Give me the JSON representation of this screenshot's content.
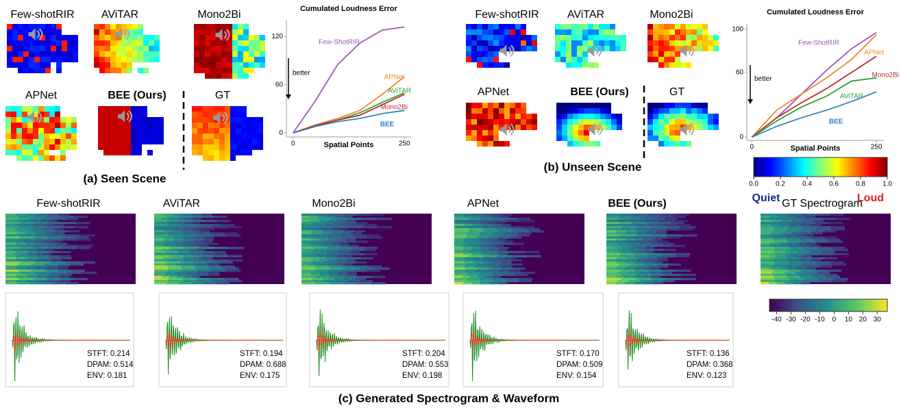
{
  "panels": {
    "seen": {
      "caption": "(a) Seen Scene",
      "methods": [
        "Few-shotRIR",
        "AViTAR",
        "Mono2Bi",
        "APNet",
        "BEE (Ours)",
        "GT"
      ]
    },
    "unseen": {
      "caption": "(b) Unseen Scene",
      "methods": [
        "Few-shotRIR",
        "AViTAR",
        "Mono2Bi",
        "APNet",
        "BEE (Ours)",
        "GT"
      ]
    }
  },
  "chart_data": [
    {
      "type": "line",
      "title": "Cumulated Loudness Error",
      "xlabel": "Spatial Points",
      "annotation": "better",
      "x": [
        0,
        50,
        100,
        150,
        200,
        250
      ],
      "xlim": [
        -15,
        265
      ],
      "ylim": [
        -5,
        140
      ],
      "xticks": [
        0,
        250
      ],
      "yticks": [
        0,
        60,
        120
      ],
      "series": [
        {
          "name": "Few-ShotRIR",
          "color": "#9b59b6",
          "values": [
            0,
            40,
            85,
            112,
            128,
            132
          ]
        },
        {
          "name": "APNet",
          "color": "#f0862a",
          "values": [
            0,
            10,
            18,
            28,
            48,
            70
          ]
        },
        {
          "name": "AViTAR",
          "color": "#2ca02c",
          "values": [
            0,
            9,
            16,
            25,
            38,
            50
          ]
        },
        {
          "name": "Mono2Bi",
          "color": "#c0282d",
          "values": [
            0,
            9,
            16,
            22,
            35,
            48
          ]
        },
        {
          "name": "BEE",
          "color": "#2e7fc0",
          "values": [
            0,
            8,
            14,
            18,
            24,
            28
          ]
        }
      ]
    },
    {
      "type": "line",
      "title": "Cumulated Loudness Error",
      "xlabel": "Spatial  Points",
      "annotation": "better",
      "x": [
        0,
        50,
        100,
        150,
        200,
        250
      ],
      "xlim": [
        -10,
        265
      ],
      "ylim": [
        -3,
        105
      ],
      "xticks": [
        0,
        250
      ],
      "yticks": [
        0,
        60,
        100
      ],
      "series": [
        {
          "name": "Few-ShotRIR",
          "color": "#9b59b6",
          "values": [
            0,
            18,
            40,
            62,
            82,
            97
          ]
        },
        {
          "name": "APNet",
          "color": "#f0862a",
          "values": [
            0,
            25,
            40,
            55,
            72,
            95
          ]
        },
        {
          "name": "Mono2Bi",
          "color": "#c0282d",
          "values": [
            0,
            18,
            32,
            45,
            60,
            75
          ]
        },
        {
          "name": "AViTAR",
          "color": "#2ca02c",
          "values": [
            0,
            15,
            28,
            38,
            52,
            55
          ]
        },
        {
          "name": "BEE",
          "color": "#2e7fc0",
          "values": [
            0,
            10,
            18,
            25,
            33,
            42
          ]
        }
      ]
    }
  ],
  "loudness_colorbar": {
    "lim": [
      0,
      1
    ],
    "ticks": [
      {
        "value": 0,
        "label": "0.0"
      },
      0.2,
      0.4,
      0.6,
      0.8,
      {
        "value": 1,
        "label": "1.0"
      }
    ],
    "low": "Quiet",
    "high": "Loud"
  },
  "spectrogram_section": {
    "caption": "(c) Generated Spectrogram & Waveform",
    "titles": [
      "Few-shotRIR",
      "AViTAR",
      "Mono2Bi",
      "APNet",
      "BEE (Ours)",
      "GT Spectrogram"
    ],
    "metrics": [
      [
        "STFT: 0.214",
        "DPAM: 0.514",
        "ENV: 0.181"
      ],
      [
        "STFT: 0.194",
        "DPAM: 0.688",
        "ENV: 0.175"
      ],
      [
        "STFT: 0.204",
        "DPAM: 0.553",
        "ENV: 0.198"
      ],
      [
        "STFT: 0.170",
        "DPAM: 0.509",
        "ENV: 0.154"
      ],
      [
        "STFT: 0.136",
        "DPAM: 0.368",
        "ENV: 0.123"
      ]
    ]
  },
  "spectrogram_colorbar": {
    "lim": [
      -45,
      37
    ],
    "ticks": [
      -40,
      -30,
      -20,
      -10,
      0,
      10,
      20,
      30
    ]
  }
}
